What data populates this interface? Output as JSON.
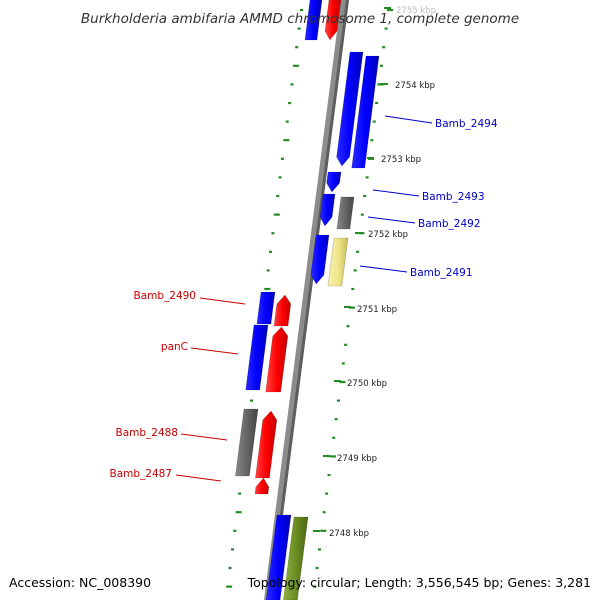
{
  "title": "Burkholderia ambifaria AMMD chromosome 1, complete genome",
  "accession": "Accession: NC_008390",
  "topology": "Topology: circular; Length: 3,556,545 bp; Genes: 3,281",
  "kbp_labels": [
    "2755 kbp",
    "2754 kbp",
    "2753 kbp",
    "2752 kbp",
    "2751 kbp",
    "2750 kbp",
    "2749 kbp",
    "2748 kbp"
  ],
  "gene_labels": {
    "plus": [
      "Bamb_2494",
      "Bamb_2493",
      "Bamb_2492",
      "Bamb_2491"
    ],
    "minus": [
      "Bamb_2490",
      "panC",
      "Bamb_2488",
      "Bamb_2487"
    ]
  },
  "colors": {
    "plus_label": "#0000c8",
    "minus_label": "#c80000",
    "blue_gene": "#0000ff",
    "red_gene": "#ff0000",
    "grey_gene": "#666666",
    "yellow_gene": "#f0e68c",
    "olive_gene": "#6b8e23",
    "ruler_ticks": "#228b22",
    "backbone": "#8c8c8c"
  },
  "icons": [
    "genome-backbone",
    "gene-arrow"
  ]
}
